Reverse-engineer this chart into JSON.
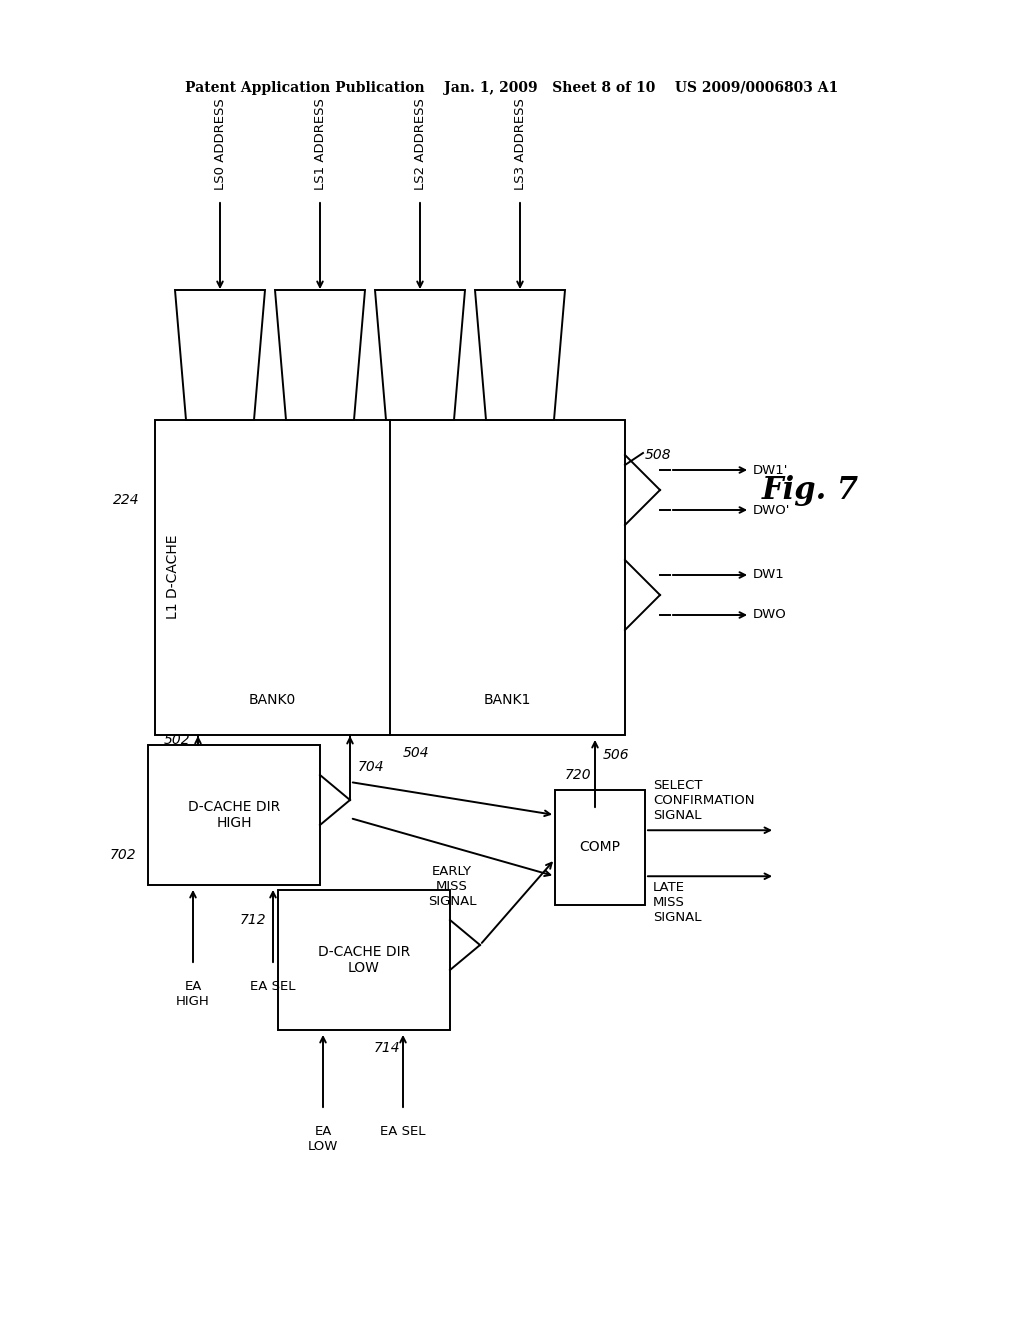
{
  "bg_color": "#ffffff",
  "header": "Patent Application Publication    Jan. 1, 2009   Sheet 8 of 10    US 2009/0006803 A1",
  "fig_label": "Fig. 7",
  "ls_labels": [
    "LS0 ADDRESS",
    "LS1 ADDRESS",
    "LS2 ADDRESS",
    "LS3 ADDRESS"
  ],
  "cache_title": "L1 D-CACHE",
  "bank_labels": [
    "BANK0",
    "BANK1"
  ],
  "dw_upper": [
    "DWO'",
    "DW1'"
  ],
  "dw_lower": [
    "DWO",
    "DW1"
  ],
  "dir_high_text": "D-CACHE DIR\nHIGH",
  "dir_low_text": "D-CACHE DIR\nLOW",
  "comp_text": "COMP",
  "early_miss": "EARLY\nMISS\nSIGNAL",
  "select_conf": "SELECT\nCONFIRMATION\nSIGNAL",
  "late_miss": "LATE\nMISS\nSIGNAL",
  "ea_high": "EA\nHIGH",
  "ea_sel": "EA SEL",
  "ea_low": "EA\nLOW",
  "n224": "224",
  "n502": "502",
  "n504": "504",
  "n506": "506",
  "n508": "508",
  "n702": "702",
  "n704": "704",
  "n712": "712",
  "n714": "714",
  "n720": "720",
  "lc": "#000000",
  "lw": 1.4
}
